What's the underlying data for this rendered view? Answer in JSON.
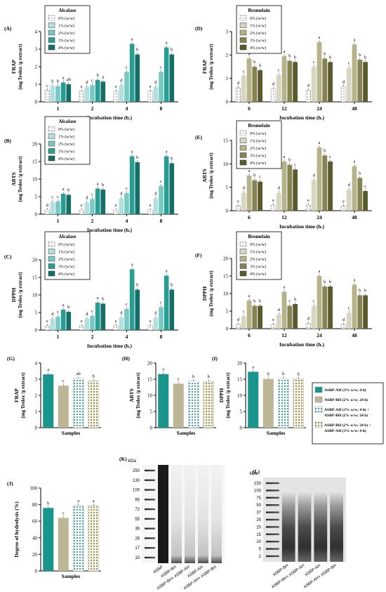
{
  "colors": {
    "alcalase": [
      "#ffffff",
      "#b3dfdf",
      "#78c8c4",
      "#2a9d93",
      "#146f68"
    ],
    "bromelain": [
      "#ffffff",
      "#d8d6c0",
      "#b6b38b",
      "#868254",
      "#5a5a2c"
    ],
    "g_bars": [
      "#1a958e",
      "#bcb596",
      "#2a9d93",
      "#c6bf96"
    ],
    "frame": "#000000"
  },
  "legend_items": [
    "0% (w/w)",
    "1% (w/w)",
    "2% (w/w)",
    "3% (w/w)",
    "4% (w/w)"
  ],
  "bottom_legend": [
    "ASBP-AH (3% w/w; 4 h)",
    "ASBP-BH (2% w/w; 24 h)",
    "ASBP-AH (3% w/w; 4 h) +",
    "ASBP-BH (2% w/w; 24 h)",
    "ASBP-BH (2% w/w; 24 h) +",
    "ASBP-AH (3% w/w; 4 h)"
  ],
  "gels": {
    "K": {
      "panel": "(K)",
      "unit": "kDa",
      "markers": [
        "250",
        "130",
        "100",
        "95",
        "72",
        "55",
        "36",
        "28",
        "17",
        "10"
      ],
      "lanes": [
        "ASBP",
        "ASBP-BH",
        "ASBP-BH+ ASBP-AH",
        "ASBP-AH",
        "ASBP-AH+ ASBP-BH"
      ]
    },
    "L": {
      "panel": "(L)",
      "unit": "kDa",
      "markers": [
        "150",
        "100",
        "75",
        "50",
        "37",
        "25",
        "20",
        "15",
        "10",
        "5",
        "2"
      ],
      "lanes": [
        "ASBP-BH",
        "ASBP-BH+ ASBP-AH",
        "ASBP-AH",
        "ASBP-AH+ ASBP-BH"
      ]
    }
  },
  "chart_data": [
    {
      "panel": "(A)",
      "type": "bar",
      "enzyme": "Alcalase",
      "ylabel": "FRAP",
      "ylabel2": "(mg Trolox /g extract)",
      "xlabel": "Incubation time (h.)",
      "categories": [
        "1",
        "2",
        "4",
        "8"
      ],
      "ylim": [
        0,
        4
      ],
      "yticks": [
        0,
        1,
        2,
        3,
        4
      ],
      "series": [
        {
          "name": "0% (w/w)",
          "values": [
            0.65,
            0.6,
            0.6,
            0.6
          ]
        },
        {
          "name": "1% (w/w)",
          "values": [
            0.9,
            0.85,
            0.95,
            0.85
          ]
        },
        {
          "name": "2% (w/w)",
          "values": [
            0.9,
            0.95,
            1.7,
            1.7
          ]
        },
        {
          "name": "3% (w/w)",
          "values": [
            1.1,
            1.25,
            3.3,
            3.1
          ]
        },
        {
          "name": "4% (w/w)",
          "values": [
            1.0,
            1.15,
            2.7,
            2.7
          ]
        }
      ],
      "letters": [
        [
          "c",
          "b",
          "b",
          "a",
          "ab"
        ],
        [
          "e",
          "d",
          "c",
          "b",
          "a"
        ],
        [
          "e",
          "d",
          "c",
          "a",
          "b"
        ],
        [
          "e",
          "d",
          "c",
          "a",
          "b"
        ]
      ]
    },
    {
      "panel": "(B)",
      "type": "bar",
      "enzyme": "Alcalase",
      "ylabel": "ABTS",
      "ylabel2": "(mg Trolox /g extract)",
      "xlabel": "Incubation time (h.)",
      "categories": [
        "1",
        "2",
        "4",
        "8"
      ],
      "ylim": [
        0,
        20
      ],
      "yticks": [
        0,
        5,
        10,
        15,
        20
      ],
      "series": [
        {
          "name": "0% (w/w)",
          "values": [
            1.2,
            1.2,
            1.2,
            1.2
          ]
        },
        {
          "name": "1% (w/w)",
          "values": [
            3.5,
            3.3,
            4.5,
            4.5
          ]
        },
        {
          "name": "2% (w/w)",
          "values": [
            3.6,
            4.3,
            6.0,
            8.0
          ]
        },
        {
          "name": "3% (w/w)",
          "values": [
            5.8,
            7.3,
            16.5,
            16.5
          ]
        },
        {
          "name": "4% (w/w)",
          "values": [
            5.5,
            7.0,
            14.8,
            14.5
          ]
        }
      ],
      "letters": [
        [
          "d",
          "c",
          "c",
          "a",
          "b"
        ],
        [
          "e",
          "d",
          "c",
          "a",
          "b"
        ],
        [
          "e",
          "d",
          "c",
          "a",
          "b"
        ],
        [
          "e",
          "d",
          "c",
          "a",
          "b"
        ]
      ]
    },
    {
      "panel": "(C)",
      "type": "bar",
      "enzyme": "Alcalase",
      "ylabel": "DPPH",
      "ylabel2": "(mg Trolox /g extract)",
      "xlabel": "Incubation time (h.)",
      "categories": [
        "1",
        "2",
        "4",
        "8"
      ],
      "ylim": [
        0,
        20
      ],
      "yticks": [
        0,
        5,
        10,
        15,
        20
      ],
      "series": [
        {
          "name": "0% (w/w)",
          "values": [
            1.2,
            1.2,
            1.2,
            1.2
          ]
        },
        {
          "name": "1% (w/w)",
          "values": [
            3.2,
            3.2,
            3.5,
            3.5
          ]
        },
        {
          "name": "2% (w/w)",
          "values": [
            3.8,
            4.0,
            6.0,
            6.5
          ]
        },
        {
          "name": "3% (w/w)",
          "values": [
            5.8,
            7.8,
            17.3,
            15.5
          ]
        },
        {
          "name": "4% (w/w)",
          "values": [
            5.2,
            7.5,
            11.5,
            11.5
          ]
        }
      ],
      "letters": [
        [
          "e",
          "d",
          "c",
          "a",
          "b"
        ],
        [
          "e",
          "d",
          "c",
          "a",
          "b"
        ],
        [
          "e",
          "d",
          "c",
          "a",
          "b"
        ],
        [
          "e",
          "d",
          "c",
          "a",
          "b"
        ]
      ]
    },
    {
      "panel": "(D)",
      "type": "bar",
      "enzyme": "Bromelain",
      "ylabel": "FRAP",
      "ylabel2": "(mg Trolox /g extract)",
      "xlabel": "Incubation time (h.)",
      "categories": [
        "6",
        "12",
        "24",
        "48"
      ],
      "ylim": [
        0,
        3
      ],
      "yticks": [
        0,
        1,
        2,
        3
      ],
      "series": [
        {
          "name": "0% (w/w)",
          "values": [
            0.6,
            0.55,
            0.5,
            0.65
          ]
        },
        {
          "name": "1% (w/w)",
          "values": [
            1.1,
            1.15,
            1.5,
            1.45
          ]
        },
        {
          "name": "2% (w/w)",
          "values": [
            1.85,
            1.95,
            2.55,
            2.45
          ]
        },
        {
          "name": "3% (w/w)",
          "values": [
            1.5,
            1.75,
            1.85,
            1.8
          ]
        },
        {
          "name": "4% (w/w)",
          "values": [
            1.35,
            1.7,
            1.7,
            1.7
          ]
        }
      ],
      "letters": [
        [
          "d",
          "c",
          "a",
          "b",
          "b"
        ],
        [
          "d",
          "c",
          "a",
          "b",
          "b"
        ],
        [
          "d",
          "c",
          "a",
          "b",
          "b"
        ],
        [
          "d",
          "c",
          "a",
          "b",
          "b"
        ]
      ]
    },
    {
      "panel": "(E)",
      "type": "bar",
      "enzyme": "Bromelain",
      "ylabel": "ABTS",
      "ylabel2": "(mg Trolox /g extract)",
      "xlabel": "Incubation time (h.)",
      "categories": [
        "6",
        "12",
        "24",
        "48"
      ],
      "ylim": [
        0,
        15
      ],
      "yticks": [
        0,
        5,
        10,
        15
      ],
      "series": [
        {
          "name": "0% (w/w)",
          "values": [
            1.0,
            1.2,
            1.2,
            1.0
          ]
        },
        {
          "name": "1% (w/w)",
          "values": [
            3.8,
            3.8,
            6.5,
            4.5
          ]
        },
        {
          "name": "2% (w/w)",
          "values": [
            7.5,
            10.5,
            13.5,
            9.5
          ]
        },
        {
          "name": "3% (w/w)",
          "values": [
            6.5,
            9.8,
            11.8,
            7.0
          ]
        },
        {
          "name": "4% (w/w)",
          "values": [
            6.2,
            8.8,
            10.5,
            4.2
          ]
        }
      ],
      "letters": [
        [
          "e",
          "d",
          "a",
          "b",
          "c"
        ],
        [
          "e",
          "d",
          "a",
          "b",
          "c"
        ],
        [
          "e",
          "d",
          "a",
          "b",
          "c"
        ],
        [
          "e",
          "d",
          "a",
          "b",
          "c"
        ]
      ]
    },
    {
      "panel": "(F)",
      "type": "bar",
      "enzyme": "Bromelain",
      "ylabel": "DPPH",
      "ylabel2": "(mg Trolox /g extract)",
      "xlabel": "Incubation time (h.)",
      "categories": [
        "6",
        "12",
        "24",
        "48"
      ],
      "ylim": [
        0,
        20
      ],
      "yticks": [
        0,
        5,
        10,
        15,
        20
      ],
      "series": [
        {
          "name": "0% (w/w)",
          "values": [
            1.2,
            1.2,
            1.5,
            1.2
          ]
        },
        {
          "name": "1% (w/w)",
          "values": [
            3.5,
            4.0,
            6.5,
            4.5
          ]
        },
        {
          "name": "2% (w/w)",
          "values": [
            8.0,
            10.5,
            15.0,
            12.5
          ]
        },
        {
          "name": "3% (w/w)",
          "values": [
            6.5,
            6.5,
            12.0,
            9.5
          ]
        },
        {
          "name": "4% (w/w)",
          "values": [
            6.5,
            7.0,
            12.0,
            9.5
          ]
        }
      ],
      "letters": [
        [
          "d",
          "c",
          "a",
          "b",
          "b"
        ],
        [
          "e",
          "d",
          "a",
          "c",
          "b"
        ],
        [
          "d",
          "c",
          "a",
          "b",
          "b"
        ],
        [
          "d",
          "c",
          "a",
          "b",
          "b"
        ]
      ]
    },
    {
      "panel": "(G)",
      "type": "bar",
      "ylabel": "FRAP",
      "ylabel2": "(mg Trolox /g extract)",
      "xlabel": "Samples",
      "ylim": [
        0,
        4
      ],
      "yticks": [
        0,
        1,
        2,
        3,
        4
      ],
      "values": [
        3.3,
        2.6,
        3.05,
        2.9
      ],
      "letters": [
        "a",
        "c",
        "ab",
        "b"
      ]
    },
    {
      "panel": "(H)",
      "type": "bar",
      "ylabel": "ABTS",
      "ylabel2": "(mg Trolox /g extract)",
      "xlabel": "Samples",
      "ylim": [
        0,
        20
      ],
      "yticks": [
        0,
        5,
        10,
        15,
        20
      ],
      "values": [
        16.6,
        13.6,
        14.4,
        14.3
      ],
      "letters": [
        "a",
        "c",
        "b",
        "b"
      ]
    },
    {
      "panel": "(I)",
      "type": "bar",
      "ylabel": "DPPH",
      "ylabel2": "(mg Trolox /g extract)",
      "xlabel": "Samples",
      "ylim": [
        0,
        20
      ],
      "yticks": [
        0,
        5,
        10,
        15,
        20
      ],
      "values": [
        17.3,
        15.1,
        15.2,
        15.1
      ],
      "letters": [
        "a",
        "b",
        "b",
        "b"
      ]
    },
    {
      "panel": "(J)",
      "type": "bar",
      "ylabel": "Degree of hydrolysis (%)",
      "ylabel2": "",
      "xlabel": "Samples",
      "ylim": [
        0,
        100
      ],
      "yticks": [
        0,
        20,
        40,
        60,
        80,
        100
      ],
      "values": [
        76,
        64,
        79,
        79
      ],
      "letters": [
        "b",
        "c",
        "a",
        "a"
      ]
    }
  ]
}
